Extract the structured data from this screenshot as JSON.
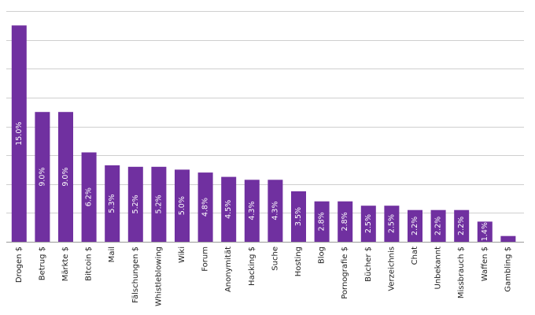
{
  "chart_data": {
    "type": "bar",
    "categories": [
      "Drogen $",
      "Betrug $",
      "Märkte $",
      "Bitcoin $",
      "Mail",
      "Fälschungen $",
      "Whistleblowing",
      "Wiki",
      "Forum",
      "Anonymität",
      "Hacking $",
      "Suche",
      "Hosting",
      "Blog",
      "Pornografie $",
      "Bücher $",
      "Verzeichnis",
      "Chat",
      "Unbekannt",
      "Missbrauch $",
      "Waffen $",
      "Gambling $"
    ],
    "values": [
      15.0,
      9.0,
      9.0,
      6.2,
      5.3,
      5.2,
      5.2,
      5.0,
      4.8,
      4.5,
      4.3,
      4.3,
      3.5,
      2.8,
      2.8,
      2.5,
      2.5,
      2.2,
      2.2,
      2.2,
      1.4,
      0.4
    ],
    "data_labels": [
      "15.0%",
      "9.0%",
      "9.0%",
      "6.2%",
      "5.3%",
      "5.2%",
      "5.2%",
      "5.0%",
      "4.8%",
      "4.5%",
      "4.3%",
      "4.3%",
      "3.5%",
      "2.8%",
      "2.8%",
      "2.5%",
      "2.5%",
      "2.2%",
      "2.2%",
      "2.2%",
      "1.4%",
      ""
    ],
    "bar_color": "#7030a0",
    "label_color": "#ffffff",
    "grid_color": "#cfcfcf",
    "ylim": [
      0,
      16
    ],
    "grid": true,
    "title": "",
    "xlabel": "",
    "ylabel": ""
  }
}
